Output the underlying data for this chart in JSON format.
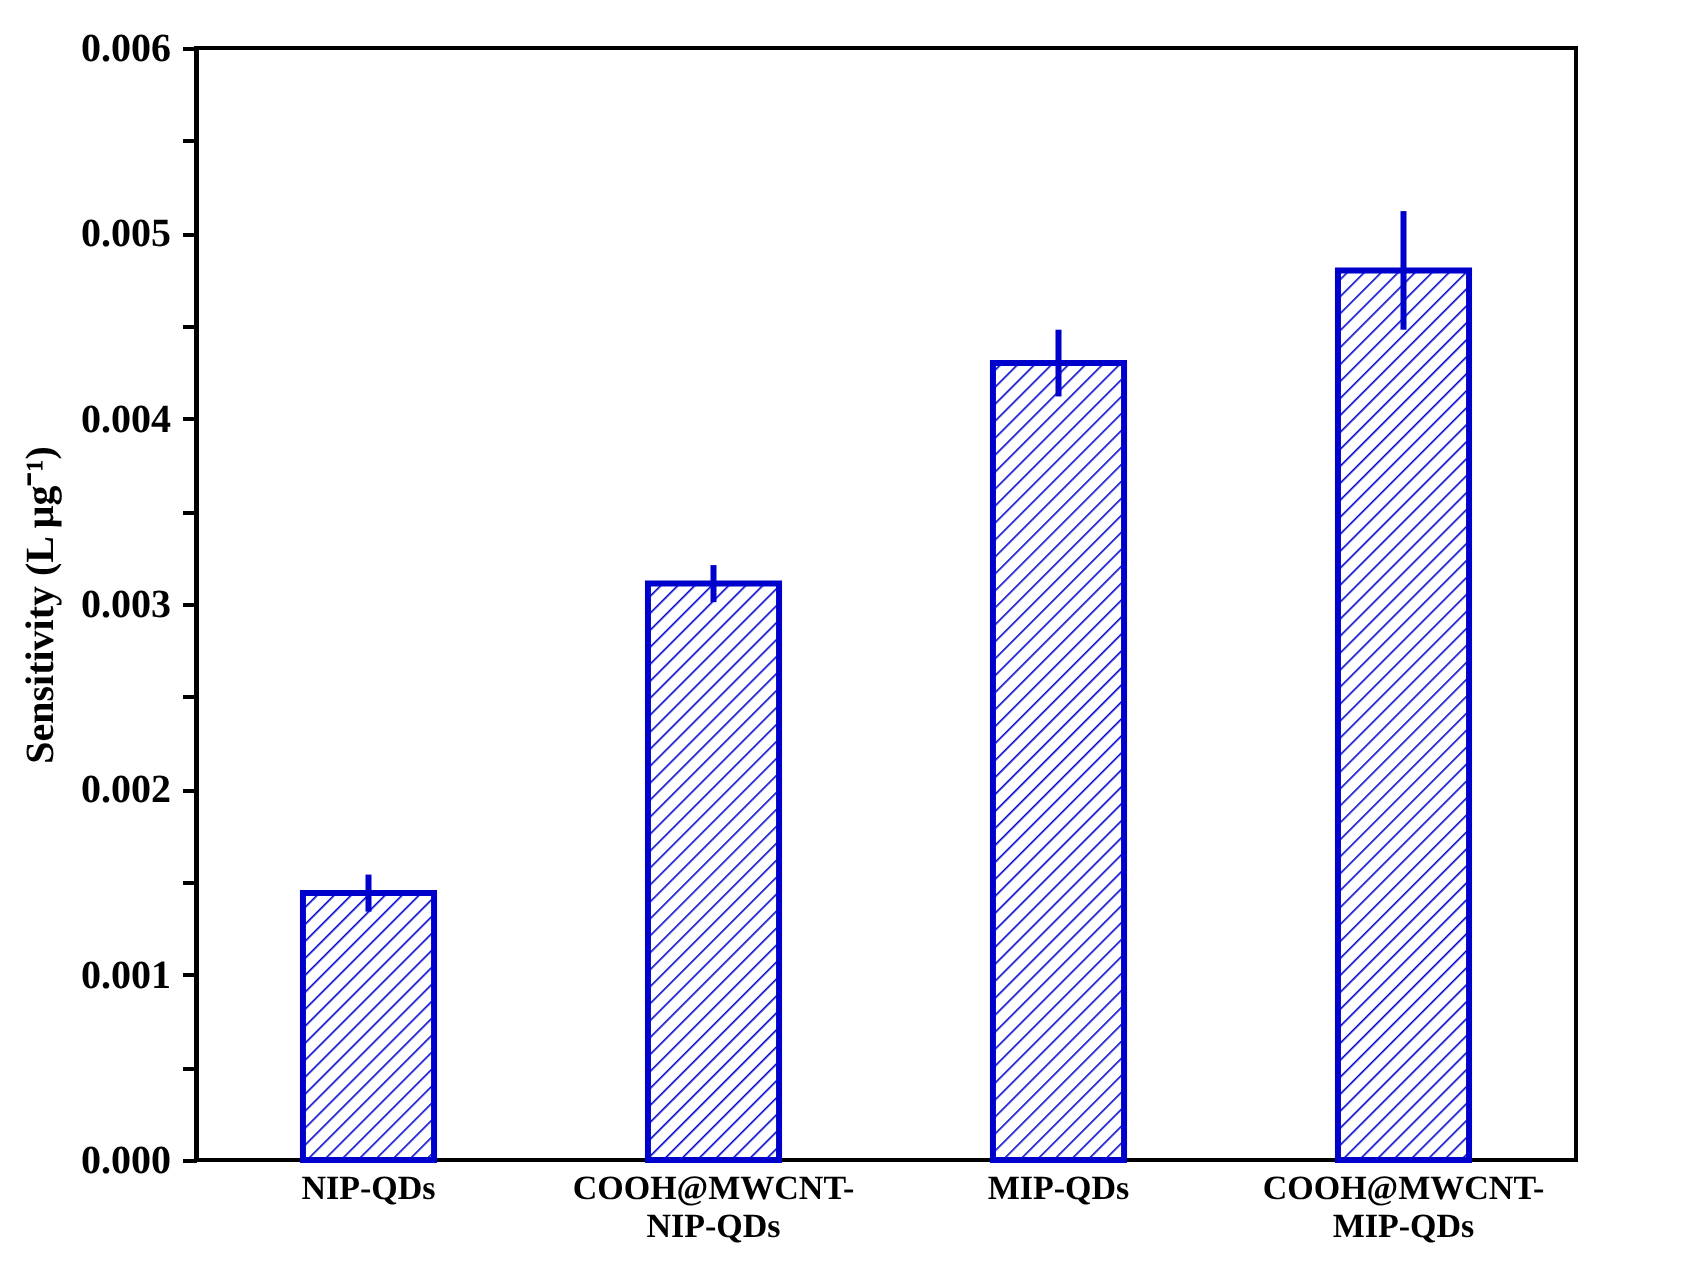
{
  "chart_data": {
    "type": "bar",
    "ylabel": "Sensitivity (L μg⁻¹)",
    "categories": [
      "NIP-QDs",
      "COOH@MWCNT-NIP-QDs",
      "MIP-QDs",
      "COOH@MWCNT-MIP-QDs"
    ],
    "values": [
      0.00144,
      0.00311,
      0.0043,
      0.0048
    ],
    "errors": [
      0.0001,
      0.0001,
      0.00018,
      0.00032
    ],
    "color": "#0000cc",
    "ylim": [
      0,
      0.006
    ],
    "yticks": [
      {
        "value": 0,
        "label": "0.000"
      },
      {
        "value": 0.0005,
        "label": null
      },
      0.001,
      {
        "value": 0.0015,
        "label": null
      },
      0.002,
      {
        "value": 0.0025,
        "label": null
      },
      0.003,
      {
        "value": 0.0035,
        "label": null
      },
      0.004,
      {
        "value": 0.0045,
        "label": null
      },
      0.005,
      {
        "value": 0.0055,
        "label": null
      },
      0.006
    ],
    "grid": false
  }
}
